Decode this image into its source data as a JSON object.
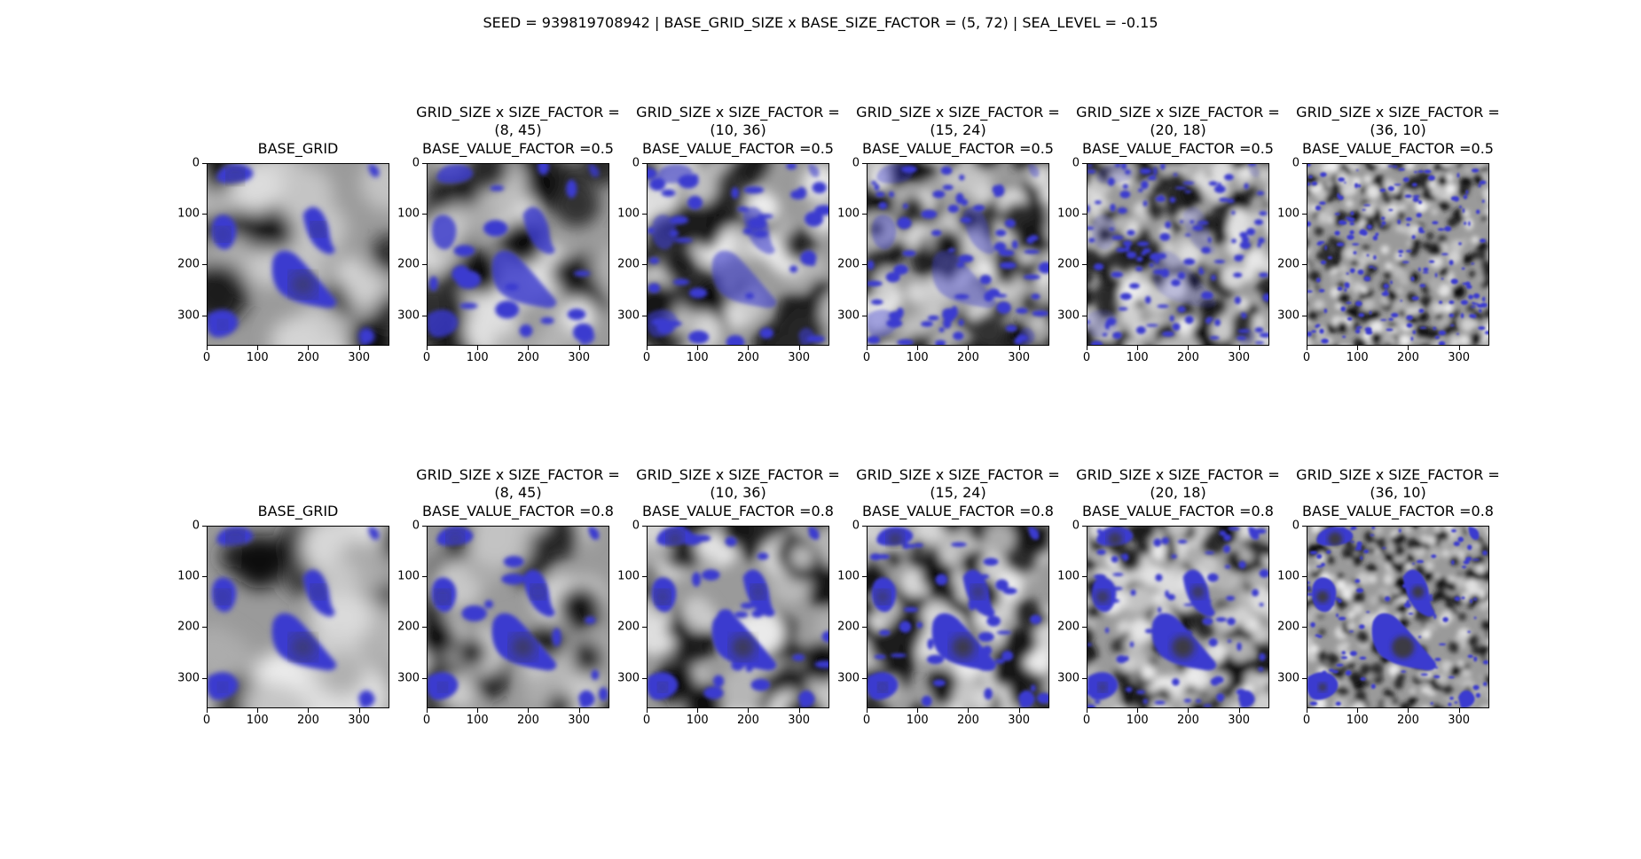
{
  "suptitle": "SEED = 939819708942 | BASE_GRID_SIZE x BASE_SIZE_FACTOR = (5, 72) | SEA_LEVEL = -0.15",
  "ticks": {
    "x": [
      "0",
      "100",
      "200",
      "300"
    ],
    "y": [
      "0",
      "100",
      "200",
      "300"
    ]
  },
  "colors": {
    "water": "#3a3acf",
    "deep": "#3d3b18"
  },
  "chart_data": [
    {
      "type": "heatmap",
      "title": "BASE_GRID",
      "xlim": [
        0,
        360
      ],
      "ylim": [
        360,
        0
      ],
      "xticks": [
        0,
        100,
        200,
        300
      ],
      "yticks": [
        0,
        100,
        200,
        300
      ]
    },
    {
      "type": "heatmap",
      "title_lines": [
        "GRID_SIZE x SIZE_FACTOR =",
        "(8, 45)",
        "BASE_VALUE_FACTOR =0.5"
      ],
      "xlim": [
        0,
        360
      ],
      "ylim": [
        360,
        0
      ],
      "xticks": [
        0,
        100,
        200,
        300
      ],
      "yticks": [
        0,
        100,
        200,
        300
      ]
    },
    {
      "type": "heatmap",
      "title_lines": [
        "GRID_SIZE x SIZE_FACTOR =",
        "(10, 36)",
        "BASE_VALUE_FACTOR =0.5"
      ],
      "xlim": [
        0,
        360
      ],
      "ylim": [
        360,
        0
      ],
      "xticks": [
        0,
        100,
        200,
        300
      ],
      "yticks": [
        0,
        100,
        200,
        300
      ]
    },
    {
      "type": "heatmap",
      "title_lines": [
        "GRID_SIZE x SIZE_FACTOR =",
        "(15, 24)",
        "BASE_VALUE_FACTOR =0.5"
      ],
      "xlim": [
        0,
        360
      ],
      "ylim": [
        360,
        0
      ],
      "xticks": [
        0,
        100,
        200,
        300
      ],
      "yticks": [
        0,
        100,
        200,
        300
      ]
    },
    {
      "type": "heatmap",
      "title_lines": [
        "GRID_SIZE x SIZE_FACTOR =",
        "(20, 18)",
        "BASE_VALUE_FACTOR =0.5"
      ],
      "xlim": [
        0,
        360
      ],
      "ylim": [
        360,
        0
      ],
      "xticks": [
        0,
        100,
        200,
        300
      ],
      "yticks": [
        0,
        100,
        200,
        300
      ]
    },
    {
      "type": "heatmap",
      "title_lines": [
        "GRID_SIZE x SIZE_FACTOR =",
        "(36, 10)",
        "BASE_VALUE_FACTOR =0.5"
      ],
      "xlim": [
        0,
        360
      ],
      "ylim": [
        360,
        0
      ],
      "xticks": [
        0,
        100,
        200,
        300
      ],
      "yticks": [
        0,
        100,
        200,
        300
      ]
    },
    {
      "type": "heatmap",
      "title": "BASE_GRID",
      "xlim": [
        0,
        360
      ],
      "ylim": [
        360,
        0
      ],
      "xticks": [
        0,
        100,
        200,
        300
      ],
      "yticks": [
        0,
        100,
        200,
        300
      ]
    },
    {
      "type": "heatmap",
      "title_lines": [
        "GRID_SIZE x SIZE_FACTOR =",
        "(8, 45)",
        "BASE_VALUE_FACTOR =0.8"
      ],
      "xlim": [
        0,
        360
      ],
      "ylim": [
        360,
        0
      ],
      "xticks": [
        0,
        100,
        200,
        300
      ],
      "yticks": [
        0,
        100,
        200,
        300
      ]
    },
    {
      "type": "heatmap",
      "title_lines": [
        "GRID_SIZE x SIZE_FACTOR =",
        "(10, 36)",
        "BASE_VALUE_FACTOR =0.8"
      ],
      "xlim": [
        0,
        360
      ],
      "ylim": [
        360,
        0
      ],
      "xticks": [
        0,
        100,
        200,
        300
      ],
      "yticks": [
        0,
        100,
        200,
        300
      ]
    },
    {
      "type": "heatmap",
      "title_lines": [
        "GRID_SIZE x SIZE_FACTOR =",
        "(15, 24)",
        "BASE_VALUE_FACTOR =0.8"
      ],
      "xlim": [
        0,
        360
      ],
      "ylim": [
        360,
        0
      ],
      "xticks": [
        0,
        100,
        200,
        300
      ],
      "yticks": [
        0,
        100,
        200,
        300
      ]
    },
    {
      "type": "heatmap",
      "title_lines": [
        "GRID_SIZE x SIZE_FACTOR =",
        "(20, 18)",
        "BASE_VALUE_FACTOR =0.8"
      ],
      "xlim": [
        0,
        360
      ],
      "ylim": [
        360,
        0
      ],
      "xticks": [
        0,
        100,
        200,
        300
      ],
      "yticks": [
        0,
        100,
        200,
        300
      ]
    },
    {
      "type": "heatmap",
      "title_lines": [
        "GRID_SIZE x SIZE_FACTOR =",
        "(36, 10)",
        "BASE_VALUE_FACTOR =0.8"
      ],
      "xlim": [
        0,
        360
      ],
      "ylim": [
        360,
        0
      ],
      "xticks": [
        0,
        100,
        200,
        300
      ],
      "yticks": [
        0,
        100,
        200,
        300
      ]
    }
  ]
}
